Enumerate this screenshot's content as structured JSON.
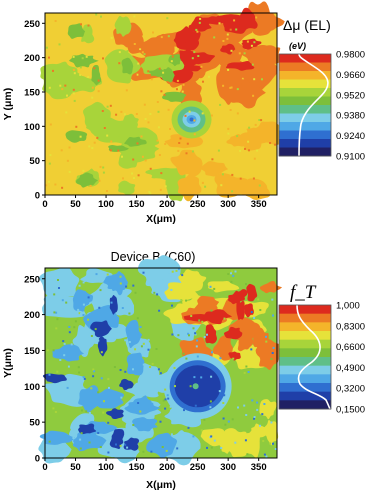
{
  "chart_data": [
    {
      "type": "heatmap",
      "title": "",
      "colorbar_label": "Δμ (EL)",
      "colorbar_unit": "(eV)",
      "colorbar_ticks": [
        "0.9800",
        "0.9660",
        "0.9520",
        "0.9380",
        "0.9240",
        "0.9100"
      ],
      "colorbar_range": [
        0.91,
        0.98
      ],
      "xlabel": "X(μm)",
      "ylabel": "Y (μm)",
      "xlim": [
        0,
        380
      ],
      "ylim": [
        0,
        265
      ],
      "xticks": [
        0,
        50,
        100,
        150,
        200,
        250,
        300,
        350
      ],
      "yticks": [
        0,
        50,
        100,
        150,
        200,
        250
      ],
      "feature": "circular region centred near X = 240 μm, Y = 110 μm"
    },
    {
      "type": "heatmap",
      "title": "Device B (C60)",
      "colorbar_label": "f_T",
      "colorbar_ticks": [
        "1,000",
        "0,8300",
        "0,6600",
        "0,4900",
        "0,3200",
        "0,1500"
      ],
      "colorbar_range": [
        0.15,
        1.0
      ],
      "xlabel": "X(μm)",
      "ylabel": "Y(μm)",
      "xlim": [
        0,
        380
      ],
      "ylim": [
        0,
        265
      ],
      "xticks": [
        0,
        50,
        100,
        150,
        200,
        250,
        300,
        350
      ],
      "yticks": [
        0,
        50,
        100,
        150,
        200,
        250
      ],
      "feature": "circular region centred near X = 250 μm, Y = 100 μm"
    }
  ],
  "palette": [
    "#202064",
    "#1f3fa8",
    "#2f6fd0",
    "#4fa8e6",
    "#7dcde8",
    "#5fbf88",
    "#7dbf3a",
    "#a8d43a",
    "#e6e23a",
    "#f4b42a",
    "#ec7a24",
    "#dd2a1e"
  ]
}
